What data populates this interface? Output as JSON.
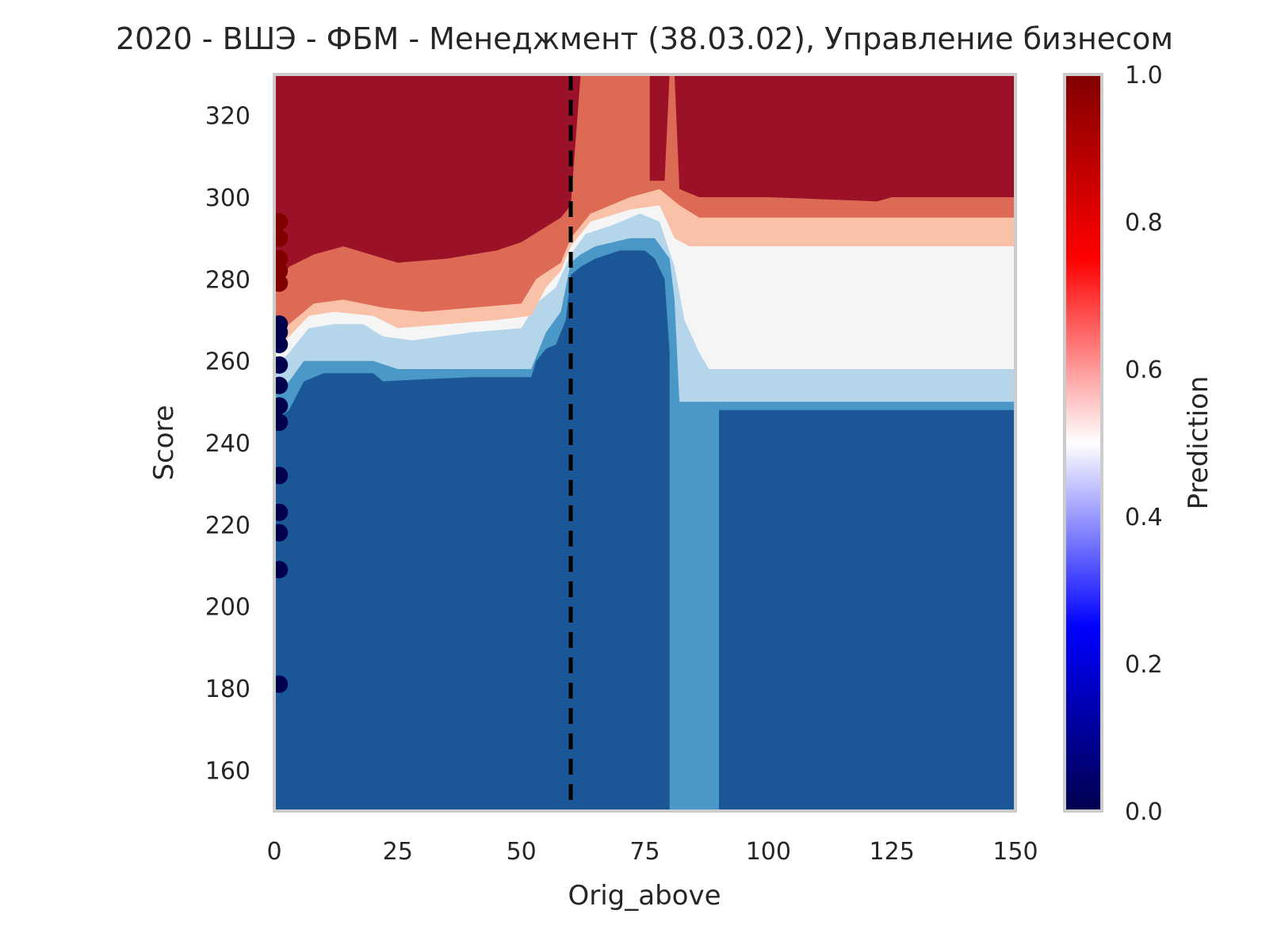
{
  "chart_data": {
    "type": "heatmap",
    "title": "2020 - ВШЭ - ФБМ - Менеджмент (38.03.02), Управление бизнесом",
    "xlabel": "Orig_above",
    "ylabel": "Score",
    "xlim": [
      0,
      150
    ],
    "ylim": [
      150,
      330
    ],
    "x_ticks": [
      "0",
      "25",
      "50",
      "75",
      "100",
      "125",
      "150"
    ],
    "y_ticks": [
      "160",
      "180",
      "200",
      "220",
      "240",
      "260",
      "280",
      "300",
      "320"
    ],
    "colorbar": {
      "label": "Prediction",
      "range": [
        0,
        1
      ],
      "ticks": [
        "0.0",
        "0.2",
        "0.4",
        "0.6",
        "0.8",
        "1.0"
      ],
      "colormap": "seismic"
    },
    "grid": false,
    "threshold_line": {
      "x": 60,
      "style": "dashed",
      "color": "#000000"
    },
    "contour_levels": [
      {
        "prediction": 0.1,
        "color": "#1b5796"
      },
      {
        "prediction": 0.25,
        "color": "#4a98c8"
      },
      {
        "prediction": 0.4,
        "color": "#b5d6ea"
      },
      {
        "prediction": 0.5,
        "color": "#f5f5f5"
      },
      {
        "prediction": 0.6,
        "color": "#f9c2a8"
      },
      {
        "prediction": 0.75,
        "color": "#dc6a55"
      },
      {
        "prediction": 0.9,
        "color": "#9b1127"
      }
    ],
    "boundaries": [
      {
        "level": 0.25,
        "points": [
          [
            0,
            245
          ],
          [
            3,
            248
          ],
          [
            6,
            255
          ],
          [
            10,
            257
          ],
          [
            20,
            257
          ],
          [
            22,
            255
          ],
          [
            30,
            255.5
          ],
          [
            40,
            256
          ],
          [
            52,
            256
          ],
          [
            53,
            260
          ],
          [
            55,
            263
          ],
          [
            57,
            264
          ],
          [
            59,
            270
          ],
          [
            60,
            281
          ],
          [
            62,
            283
          ],
          [
            65,
            285
          ],
          [
            70,
            287
          ],
          [
            75,
            287
          ],
          [
            77,
            285
          ],
          [
            79,
            280
          ],
          [
            80,
            262
          ],
          [
            80,
            150
          ],
          [
            90,
            150
          ],
          [
            90,
            248
          ],
          [
            150,
            248
          ]
        ]
      },
      {
        "level": 0.4,
        "points": [
          [
            0,
            252
          ],
          [
            3,
            255
          ],
          [
            6,
            260
          ],
          [
            10,
            260
          ],
          [
            20,
            260
          ],
          [
            25,
            258
          ],
          [
            35,
            258
          ],
          [
            45,
            258
          ],
          [
            52,
            258
          ],
          [
            55,
            267
          ],
          [
            58,
            272
          ],
          [
            60,
            284
          ],
          [
            62,
            286
          ],
          [
            65,
            288
          ],
          [
            72,
            290
          ],
          [
            77,
            290
          ],
          [
            80,
            285
          ],
          [
            81,
            275
          ],
          [
            82,
            250
          ],
          [
            90,
            250
          ],
          [
            90,
            250
          ],
          [
            150,
            250
          ]
        ]
      },
      {
        "level": 0.5,
        "points": [
          [
            0,
            258
          ],
          [
            3,
            262
          ],
          [
            7,
            268
          ],
          [
            12,
            269
          ],
          [
            18,
            269
          ],
          [
            22,
            266
          ],
          [
            28,
            265
          ],
          [
            40,
            267
          ],
          [
            50,
            268
          ],
          [
            53,
            274
          ],
          [
            57,
            278
          ],
          [
            60,
            286
          ],
          [
            63,
            291
          ],
          [
            68,
            293
          ],
          [
            74,
            296
          ],
          [
            78,
            294
          ],
          [
            81,
            283
          ],
          [
            83,
            270
          ],
          [
            86,
            262
          ],
          [
            88,
            258
          ],
          [
            150,
            258
          ]
        ]
      },
      {
        "level": 0.6,
        "points": [
          [
            0,
            262
          ],
          [
            3,
            266
          ],
          [
            7,
            271
          ],
          [
            12,
            272
          ],
          [
            20,
            271
          ],
          [
            25,
            268
          ],
          [
            35,
            269
          ],
          [
            45,
            270
          ],
          [
            52,
            271
          ],
          [
            55,
            278
          ],
          [
            58,
            282
          ],
          [
            60,
            288
          ],
          [
            64,
            294
          ],
          [
            72,
            297
          ],
          [
            78,
            298
          ],
          [
            81,
            290
          ],
          [
            84,
            288
          ],
          [
            88,
            288
          ],
          [
            150,
            288
          ]
        ]
      },
      {
        "level": 0.75,
        "points": [
          [
            0,
            266
          ],
          [
            3,
            269
          ],
          [
            8,
            274
          ],
          [
            14,
            275
          ],
          [
            22,
            273
          ],
          [
            30,
            272
          ],
          [
            40,
            273
          ],
          [
            50,
            274
          ],
          [
            53,
            280
          ],
          [
            58,
            284
          ],
          [
            60,
            290
          ],
          [
            64,
            296
          ],
          [
            72,
            300
          ],
          [
            78,
            302
          ],
          [
            82,
            298
          ],
          [
            86,
            295
          ],
          [
            100,
            295
          ],
          [
            150,
            295
          ]
        ]
      },
      {
        "level": 0.9,
        "points": [
          [
            0,
            278
          ],
          [
            3,
            283
          ],
          [
            8,
            286
          ],
          [
            14,
            288
          ],
          [
            25,
            284
          ],
          [
            35,
            285
          ],
          [
            45,
            287
          ],
          [
            50,
            289
          ],
          [
            54,
            292
          ],
          [
            58,
            295
          ],
          [
            60,
            298
          ],
          [
            62,
            330
          ],
          [
            76,
            330
          ],
          [
            76,
            304
          ],
          [
            79,
            304
          ],
          [
            80,
            330
          ],
          [
            81,
            330
          ],
          [
            82,
            302
          ],
          [
            86,
            300
          ],
          [
            100,
            300
          ],
          [
            122,
            299
          ],
          [
            125,
            300
          ],
          [
            150,
            300
          ]
        ]
      }
    ],
    "series": [
      {
        "name": "",
        "type": "scatter",
        "points": [
          {
            "x": 1,
            "y": 294,
            "value": 1.0
          },
          {
            "x": 1,
            "y": 290,
            "value": 1.0
          },
          {
            "x": 1,
            "y": 285,
            "value": 1.0
          },
          {
            "x": 1,
            "y": 282,
            "value": 1.0
          },
          {
            "x": 1,
            "y": 279,
            "value": 1.0
          },
          {
            "x": 1,
            "y": 269,
            "value": 0.0
          },
          {
            "x": 1,
            "y": 267,
            "value": 0.0
          },
          {
            "x": 1,
            "y": 264,
            "value": 0.0
          },
          {
            "x": 1,
            "y": 259,
            "value": 0.0
          },
          {
            "x": 1,
            "y": 254,
            "value": 0.0
          },
          {
            "x": 1,
            "y": 249,
            "value": 0.0
          },
          {
            "x": 1,
            "y": 245,
            "value": 0.0
          },
          {
            "x": 1,
            "y": 232,
            "value": 0.0
          },
          {
            "x": 1,
            "y": 223,
            "value": 0.0
          },
          {
            "x": 1,
            "y": 218,
            "value": 0.0
          },
          {
            "x": 1,
            "y": 209,
            "value": 0.0
          },
          {
            "x": 1,
            "y": 181,
            "value": 0.0
          }
        ]
      }
    ]
  }
}
